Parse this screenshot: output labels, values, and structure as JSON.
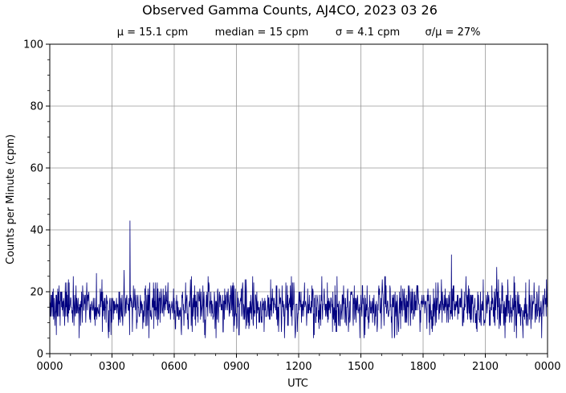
{
  "chart_data": {
    "type": "line",
    "title": "Observed Gamma Counts, AJ4CO, 2023 03 26",
    "subtitle": {
      "mean": "μ = 15.1 cpm",
      "median": "median = 15 cpm",
      "sigma": "σ = 4.1 cpm",
      "ratio": "σ/μ = 27%"
    },
    "xlabel": "UTC",
    "ylabel": "Counts per Minute (cpm)",
    "xlim": [
      0,
      1440
    ],
    "ylim": [
      0,
      100
    ],
    "x_ticks": [
      {
        "value": 0,
        "label": "0000"
      },
      {
        "value": 180,
        "label": "0300"
      },
      {
        "value": 360,
        "label": "0600"
      },
      {
        "value": 540,
        "label": "0900"
      },
      {
        "value": 720,
        "label": "1200"
      },
      {
        "value": 900,
        "label": "1500"
      },
      {
        "value": 1080,
        "label": "1800"
      },
      {
        "value": 1260,
        "label": "2100"
      },
      {
        "value": 1440,
        "label": "0000"
      }
    ],
    "y_ticks": [
      {
        "value": 0,
        "label": "0"
      },
      {
        "value": 20,
        "label": "20"
      },
      {
        "value": 40,
        "label": "40"
      },
      {
        "value": 60,
        "label": "60"
      },
      {
        "value": 80,
        "label": "80"
      },
      {
        "value": 100,
        "label": "100"
      }
    ],
    "grid": true,
    "series": [
      {
        "color": "#00007f",
        "sampling": "one value per minute, 1440 points",
        "mean": 15.1,
        "std": 4.1,
        "peaks": [
          {
            "x": 232,
            "y": 43
          },
          {
            "x": 1162,
            "y": 32
          },
          {
            "x": 1293,
            "y": 28
          },
          {
            "x": 215,
            "y": 27
          },
          {
            "x": 135,
            "y": 26
          }
        ]
      }
    ]
  }
}
